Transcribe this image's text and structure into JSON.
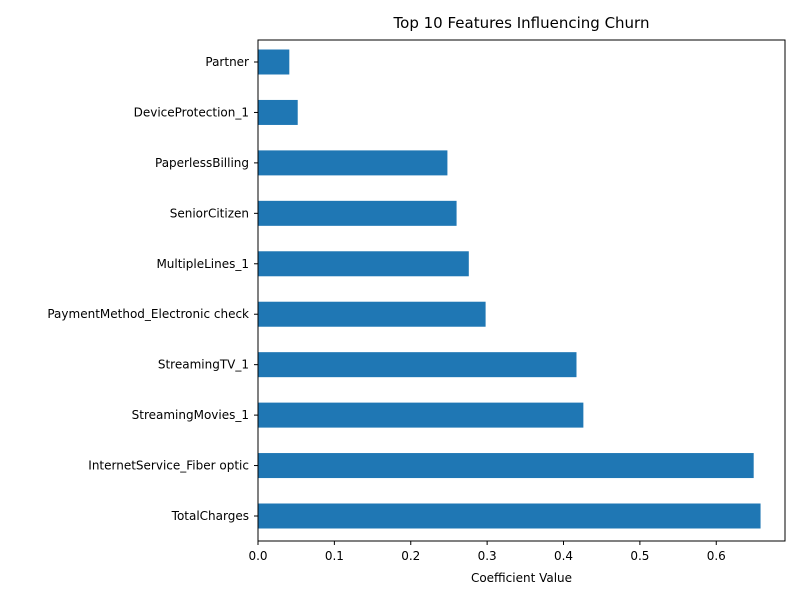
{
  "chart_data": {
    "type": "bar",
    "orientation": "horizontal",
    "title": "Top 10 Features Influencing Churn",
    "xlabel": "Coefficient Value",
    "ylabel": "",
    "categories": [
      "Partner",
      "DeviceProtection_1",
      "PaperlessBilling",
      "SeniorCitizen",
      "MultipleLines_1",
      "PaymentMethod_Electronic check",
      "StreamingTV_1",
      "StreamingMovies_1",
      "InternetService_Fiber optic",
      "TotalCharges"
    ],
    "values": [
      0.041,
      0.052,
      0.248,
      0.26,
      0.276,
      0.298,
      0.417,
      0.426,
      0.649,
      0.658
    ],
    "xlim": [
      0.0,
      0.69
    ],
    "xticks": [
      0.0,
      0.1,
      0.2,
      0.3,
      0.4,
      0.5,
      0.6
    ],
    "xtick_labels": [
      "0.0",
      "0.1",
      "0.2",
      "0.3",
      "0.4",
      "0.5",
      "0.6"
    ],
    "bar_color": "#1f77b4",
    "grid": false,
    "legend": "none"
  }
}
